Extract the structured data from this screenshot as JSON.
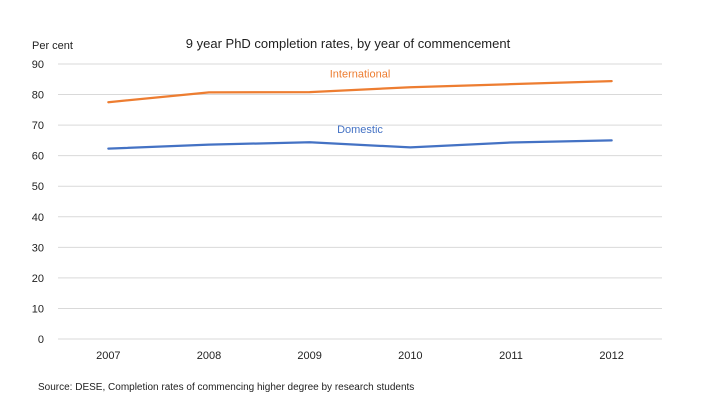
{
  "chart_data": {
    "type": "line",
    "title": "9 year PhD completion rates, by year of commencement",
    "ylabel": "Per cent",
    "xlabel": "",
    "categories": [
      "2007",
      "2008",
      "2009",
      "2010",
      "2011",
      "2012"
    ],
    "ylim": [
      0,
      90
    ],
    "yticks": [
      0,
      10,
      20,
      30,
      40,
      50,
      60,
      70,
      80,
      90
    ],
    "grid": true,
    "series": [
      {
        "name": "International",
        "color": "#ED7D31",
        "values": [
          77.5,
          80.7,
          80.8,
          82.4,
          83.4,
          84.4
        ]
      },
      {
        "name": "Domestic",
        "color": "#4472C4",
        "values": [
          62.3,
          63.6,
          64.4,
          62.7,
          64.3,
          65.0
        ]
      }
    ],
    "source": "Source: DESE, Completion rates of commencing higher degree by research students"
  }
}
